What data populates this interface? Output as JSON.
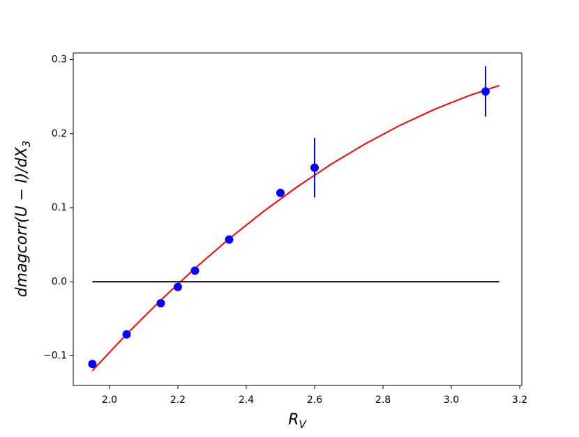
{
  "chart_data": {
    "type": "scatter",
    "xlabel": {
      "text": "R",
      "sub": "V"
    },
    "ylabel": {
      "text": "dmagcorr(U − I)/dX",
      "sub": "3"
    },
    "xlim": [
      1.894,
      3.206
    ],
    "ylim": [
      -0.14,
      0.309
    ],
    "xticks": [
      {
        "value": 2.0,
        "label": "2.0"
      },
      {
        "value": 2.2,
        "label": "2.2"
      },
      {
        "value": 2.4,
        "label": "2.4"
      },
      {
        "value": 2.6,
        "label": "2.6"
      },
      {
        "value": 2.8,
        "label": "2.8"
      },
      {
        "value": 3.0,
        "label": "3.0"
      },
      {
        "value": 3.2,
        "label": "3.2"
      }
    ],
    "yticks": [
      {
        "value": -0.1,
        "label": "−0.1"
      },
      {
        "value": 0.0,
        "label": "0.0"
      },
      {
        "value": 0.1,
        "label": "0.1"
      },
      {
        "value": 0.2,
        "label": "0.2"
      },
      {
        "value": 0.3,
        "label": "0.3"
      }
    ],
    "series": [
      {
        "type": "scatter",
        "color": "#0000ff",
        "x": [
          1.95,
          2.05,
          2.15,
          2.2,
          2.25,
          2.35,
          2.5,
          2.6,
          3.1
        ],
        "values": [
          -0.111,
          -0.071,
          -0.029,
          -0.007,
          0.015,
          0.057,
          0.12,
          0.154,
          0.257
        ],
        "errors": [
          null,
          null,
          null,
          null,
          null,
          null,
          null,
          0.04,
          0.034
        ]
      },
      {
        "type": "line",
        "color": "#ff0000",
        "x": [
          1.95,
          2.05,
          2.15,
          2.25,
          2.35,
          2.45,
          2.55,
          2.65,
          2.75,
          2.85,
          2.95,
          3.05,
          3.14
        ],
        "values": [
          -0.12,
          -0.0709,
          -0.0249,
          0.0181,
          0.058,
          0.0948,
          0.1285,
          0.1592,
          0.1868,
          0.2113,
          0.2327,
          0.2511,
          0.265
        ]
      },
      {
        "type": "line",
        "color": "#000000",
        "x": [
          1.95,
          3.14
        ],
        "values": [
          0,
          0
        ]
      }
    ]
  }
}
